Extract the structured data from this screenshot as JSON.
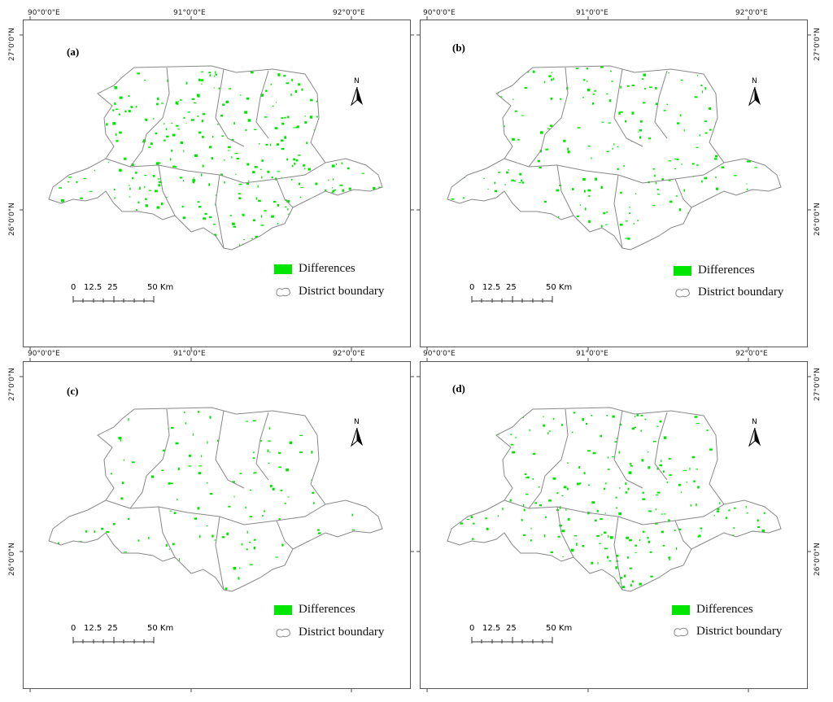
{
  "longitude_labels": [
    "90°0'0\"E",
    "91°0'0\"E",
    "92°0'0\"E"
  ],
  "latitude_labels": [
    "27°0'0\"N",
    "26°0'0\"N"
  ],
  "panels": [
    {
      "letter": "(a)"
    },
    {
      "letter": "(b)"
    },
    {
      "letter": "(c)"
    },
    {
      "letter": "(d)"
    }
  ],
  "legend": {
    "differences": "Differences",
    "district_boundary": "District boundary",
    "differences_color": "#00e600",
    "boundary_color": "#888888"
  },
  "north_arrow": {
    "label": "N"
  },
  "scale_bar": {
    "labels": [
      "0",
      "12.5",
      "25",
      "50 Km"
    ]
  }
}
